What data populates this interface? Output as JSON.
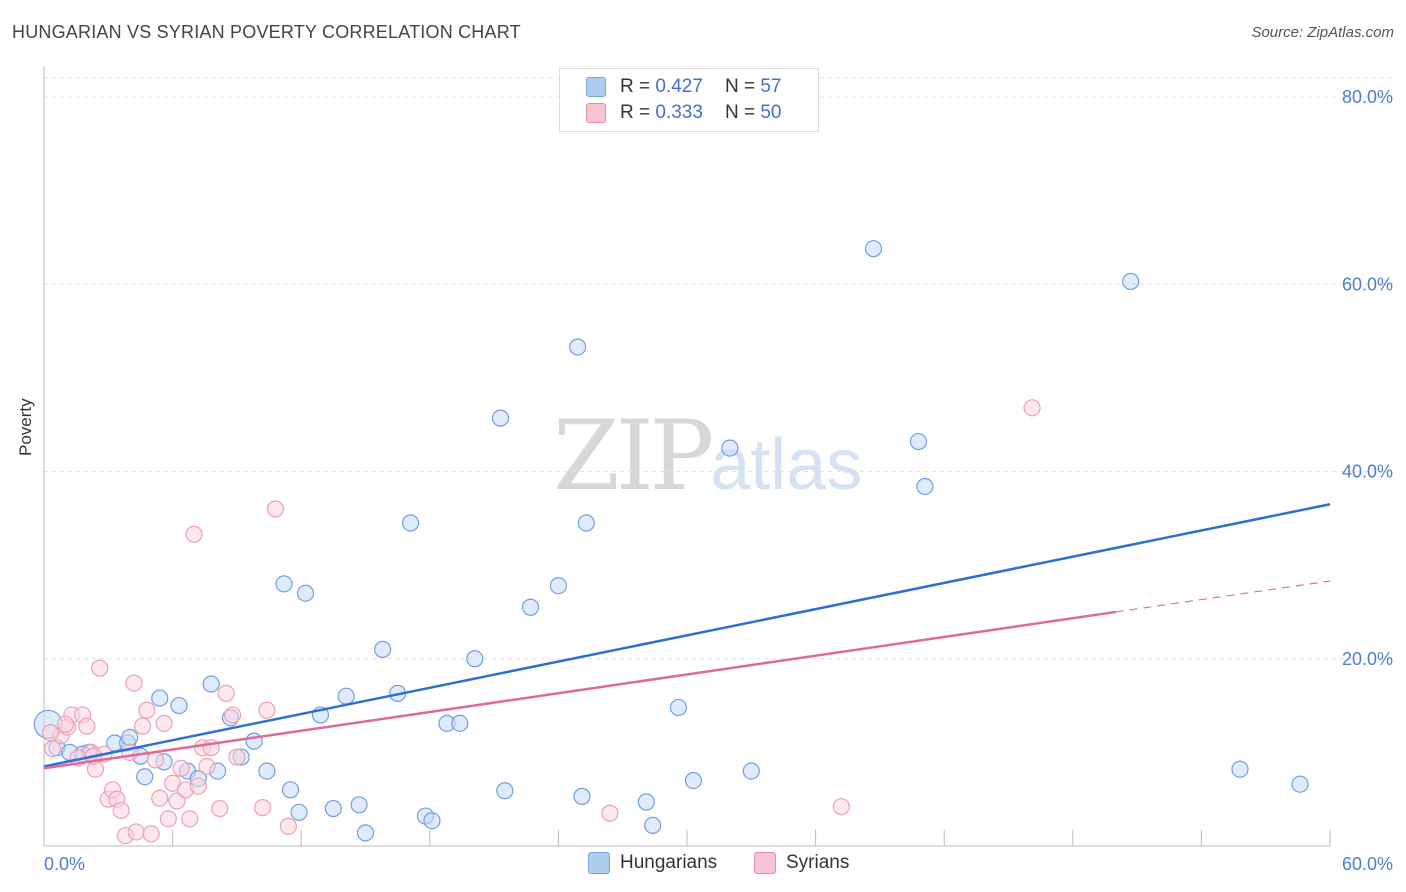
{
  "title": "HUNGARIAN VS SYRIAN POVERTY CORRELATION CHART",
  "source": "Source: ZipAtlas.com",
  "watermark": {
    "part1": "ZIP",
    "part2": "atlas"
  },
  "legend": {
    "rows": [
      {
        "r_label": "R = ",
        "r_value": "0.427",
        "n_label": "N = ",
        "n_value": "57",
        "color": "#aecbf0",
        "border": "#7aa6e0"
      },
      {
        "r_label": "R = ",
        "r_value": "0.333",
        "n_label": "N = ",
        "n_value": "50",
        "color": "#f7c4d3",
        "border": "#e98aa8"
      }
    ]
  },
  "bottom_legend": [
    {
      "label": "Hungarians",
      "color": "#aecbf0",
      "border": "#7aa6e0"
    },
    {
      "label": "Syrians",
      "color": "#f7c4d3",
      "border": "#e98aa8"
    }
  ],
  "chart_data": {
    "type": "scatter",
    "title": "HUNGARIAN VS SYRIAN POVERTY CORRELATION CHART",
    "xlabel": "",
    "ylabel": "Poverty",
    "xlim": [
      0,
      60
    ],
    "ylim": [
      0,
      80
    ],
    "x_tick_labels": [
      "0.0%",
      "60.0%"
    ],
    "y_ticks": [
      20,
      40,
      60,
      80
    ],
    "y_tick_labels": [
      "20.0%",
      "40.0%",
      "60.0%",
      "80.0%"
    ],
    "grid": true,
    "series": [
      {
        "name": "Hungarians",
        "color": "#6f9fe0",
        "fill": "#c5daf5",
        "trend": {
          "x0": 0,
          "y0": 8.5,
          "x1": 60,
          "y1": 36.5,
          "color": "#2f6fd1"
        },
        "points": [
          [
            0.2,
            13.0
          ],
          [
            0.6,
            10.5
          ],
          [
            1.2,
            10.0
          ],
          [
            2.1,
            10.0
          ],
          [
            3.3,
            11.0
          ],
          [
            3.9,
            11.0
          ],
          [
            4.5,
            9.6
          ],
          [
            4.7,
            7.4
          ],
          [
            5.4,
            15.8
          ],
          [
            5.6,
            9.0
          ],
          [
            6.3,
            15.0
          ],
          [
            6.7,
            8.0
          ],
          [
            7.2,
            7.2
          ],
          [
            7.8,
            17.3
          ],
          [
            8.1,
            8.0
          ],
          [
            8.7,
            13.7
          ],
          [
            9.2,
            9.5
          ],
          [
            9.8,
            11.2
          ],
          [
            10.4,
            8.0
          ],
          [
            11.2,
            28.0
          ],
          [
            11.5,
            6.0
          ],
          [
            11.9,
            3.6
          ],
          [
            12.2,
            27.0
          ],
          [
            12.9,
            14.0
          ],
          [
            13.5,
            4.0
          ],
          [
            14.1,
            16.0
          ],
          [
            14.7,
            4.4
          ],
          [
            15.0,
            1.4
          ],
          [
            15.8,
            21.0
          ],
          [
            16.5,
            16.3
          ],
          [
            17.1,
            34.5
          ],
          [
            17.8,
            3.2
          ],
          [
            18.1,
            2.7
          ],
          [
            18.8,
            13.1
          ],
          [
            19.4,
            13.1
          ],
          [
            20.1,
            20.0
          ],
          [
            21.3,
            45.7
          ],
          [
            21.5,
            5.9
          ],
          [
            22.7,
            25.5
          ],
          [
            24.0,
            27.8
          ],
          [
            24.9,
            53.3
          ],
          [
            25.1,
            5.3
          ],
          [
            25.3,
            34.5
          ],
          [
            28.1,
            4.7
          ],
          [
            28.4,
            2.2
          ],
          [
            29.6,
            14.8
          ],
          [
            30.3,
            7.0
          ],
          [
            32.0,
            42.5
          ],
          [
            33.0,
            8.0
          ],
          [
            38.7,
            63.8
          ],
          [
            40.8,
            43.2
          ],
          [
            41.1,
            38.4
          ],
          [
            50.7,
            60.3
          ],
          [
            55.8,
            8.2
          ],
          [
            58.6,
            6.6
          ],
          [
            4.0,
            11.6
          ],
          [
            1.8,
            9.8
          ]
        ]
      },
      {
        "name": "Syrians",
        "color": "#eaa0b9",
        "fill": "#f9d3df",
        "trend": {
          "x0": 0,
          "y0": 8.3,
          "x1": 50,
          "y1": 25.0,
          "dash_x1": 60,
          "dash_y1": 28.3,
          "color": "#e06a95"
        },
        "points": [
          [
            0.4,
            10.4
          ],
          [
            0.8,
            11.8
          ],
          [
            1.1,
            12.7
          ],
          [
            1.3,
            14.0
          ],
          [
            1.6,
            9.4
          ],
          [
            1.8,
            14.0
          ],
          [
            2.0,
            12.8
          ],
          [
            2.2,
            10.0
          ],
          [
            2.4,
            8.2
          ],
          [
            2.6,
            19.0
          ],
          [
            2.8,
            9.8
          ],
          [
            3.0,
            5.0
          ],
          [
            3.2,
            6.0
          ],
          [
            3.4,
            5.0
          ],
          [
            3.6,
            3.8
          ],
          [
            3.8,
            1.1
          ],
          [
            4.0,
            10.0
          ],
          [
            4.2,
            17.4
          ],
          [
            4.3,
            1.5
          ],
          [
            4.6,
            12.8
          ],
          [
            4.8,
            14.5
          ],
          [
            5.0,
            1.3
          ],
          [
            5.2,
            9.2
          ],
          [
            5.4,
            5.1
          ],
          [
            5.6,
            13.1
          ],
          [
            5.8,
            2.9
          ],
          [
            6.0,
            6.7
          ],
          [
            6.2,
            4.8
          ],
          [
            6.4,
            8.3
          ],
          [
            6.6,
            6.0
          ],
          [
            6.8,
            2.9
          ],
          [
            7.0,
            33.3
          ],
          [
            7.2,
            6.4
          ],
          [
            7.4,
            10.5
          ],
          [
            7.6,
            8.5
          ],
          [
            7.8,
            10.5
          ],
          [
            8.2,
            4.0
          ],
          [
            8.5,
            16.3
          ],
          [
            8.8,
            14.0
          ],
          [
            9.0,
            9.5
          ],
          [
            10.2,
            4.1
          ],
          [
            10.4,
            14.5
          ],
          [
            10.8,
            36.0
          ],
          [
            11.4,
            2.1
          ],
          [
            26.4,
            3.5
          ],
          [
            37.2,
            4.2
          ],
          [
            46.1,
            46.8
          ],
          [
            0.3,
            12.1
          ],
          [
            1.0,
            13.0
          ],
          [
            2.3,
            9.6
          ]
        ]
      }
    ]
  }
}
